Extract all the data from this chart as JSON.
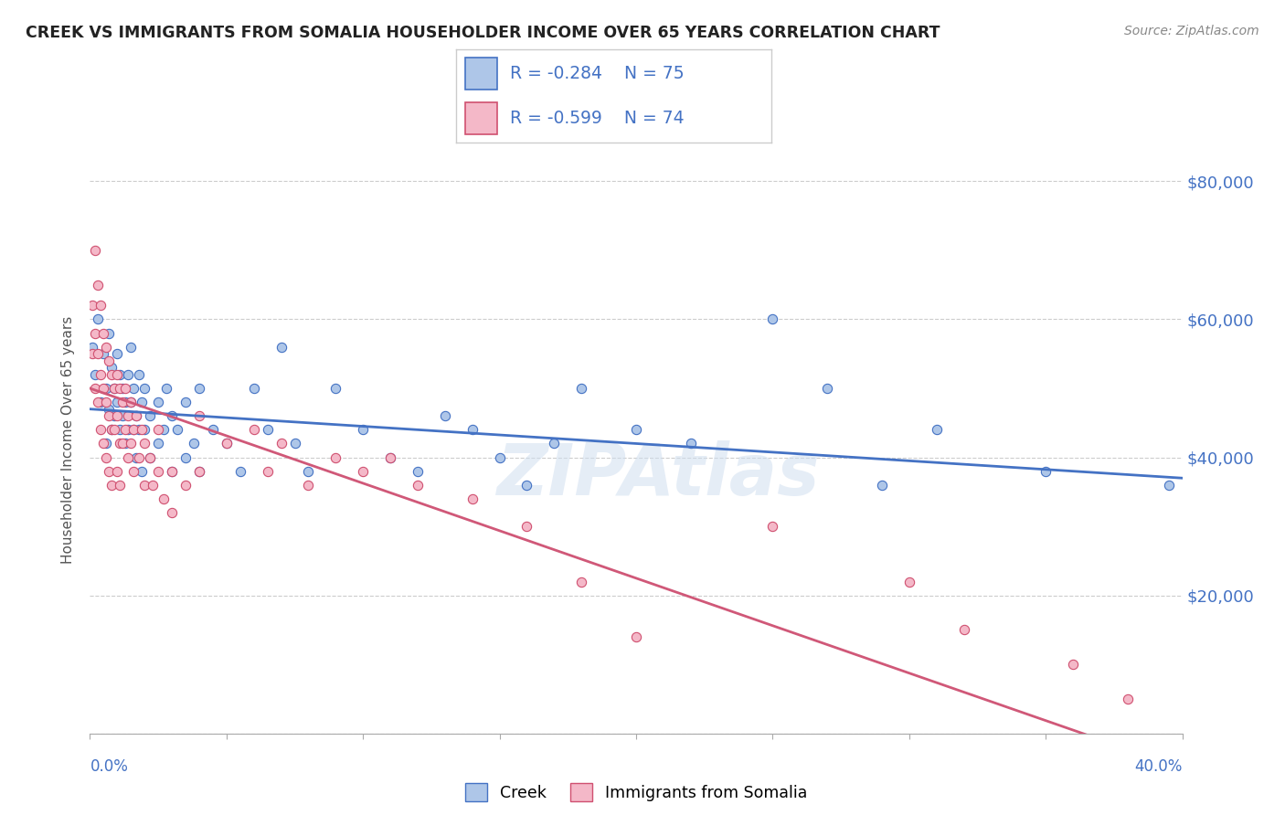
{
  "title": "CREEK VS IMMIGRANTS FROM SOMALIA HOUSEHOLDER INCOME OVER 65 YEARS CORRELATION CHART",
  "source": "Source: ZipAtlas.com",
  "ylabel": "Householder Income Over 65 years",
  "xmin": 0.0,
  "xmax": 0.4,
  "ymin": 0,
  "ymax": 85000,
  "yticks": [
    0,
    20000,
    40000,
    60000,
    80000
  ],
  "ytick_labels": [
    "",
    "$20,000",
    "$40,000",
    "$60,000",
    "$80,000"
  ],
  "creek_color": "#aec6e8",
  "creek_edge_color": "#4472c4",
  "somalia_color": "#f4b8c8",
  "somalia_edge_color": "#d05070",
  "creek_line_color": "#4472c4",
  "somalia_line_color": "#d05878",
  "creek_R": -0.284,
  "creek_N": 75,
  "somalia_R": -0.599,
  "somalia_N": 74,
  "text_color": "#4472c4",
  "grid_color": "#cccccc",
  "background_color": "#ffffff",
  "creek_scatter": [
    [
      0.001,
      56000
    ],
    [
      0.002,
      52000
    ],
    [
      0.003,
      60000
    ],
    [
      0.004,
      48000
    ],
    [
      0.005,
      55000
    ],
    [
      0.006,
      50000
    ],
    [
      0.006,
      42000
    ],
    [
      0.007,
      58000
    ],
    [
      0.007,
      47000
    ],
    [
      0.008,
      53000
    ],
    [
      0.008,
      44000
    ],
    [
      0.009,
      50000
    ],
    [
      0.009,
      46000
    ],
    [
      0.01,
      55000
    ],
    [
      0.01,
      48000
    ],
    [
      0.011,
      52000
    ],
    [
      0.011,
      44000
    ],
    [
      0.012,
      50000
    ],
    [
      0.012,
      46000
    ],
    [
      0.013,
      48000
    ],
    [
      0.013,
      42000
    ],
    [
      0.014,
      52000
    ],
    [
      0.014,
      44000
    ],
    [
      0.015,
      56000
    ],
    [
      0.015,
      48000
    ],
    [
      0.016,
      50000
    ],
    [
      0.016,
      44000
    ],
    [
      0.017,
      46000
    ],
    [
      0.017,
      40000
    ],
    [
      0.018,
      52000
    ],
    [
      0.018,
      44000
    ],
    [
      0.019,
      48000
    ],
    [
      0.019,
      38000
    ],
    [
      0.02,
      50000
    ],
    [
      0.02,
      44000
    ],
    [
      0.022,
      46000
    ],
    [
      0.022,
      40000
    ],
    [
      0.025,
      48000
    ],
    [
      0.025,
      42000
    ],
    [
      0.027,
      44000
    ],
    [
      0.028,
      50000
    ],
    [
      0.03,
      46000
    ],
    [
      0.03,
      38000
    ],
    [
      0.032,
      44000
    ],
    [
      0.035,
      48000
    ],
    [
      0.035,
      40000
    ],
    [
      0.038,
      42000
    ],
    [
      0.04,
      50000
    ],
    [
      0.04,
      38000
    ],
    [
      0.045,
      44000
    ],
    [
      0.05,
      42000
    ],
    [
      0.055,
      38000
    ],
    [
      0.06,
      50000
    ],
    [
      0.065,
      44000
    ],
    [
      0.07,
      56000
    ],
    [
      0.075,
      42000
    ],
    [
      0.08,
      38000
    ],
    [
      0.09,
      50000
    ],
    [
      0.1,
      44000
    ],
    [
      0.11,
      40000
    ],
    [
      0.12,
      38000
    ],
    [
      0.13,
      46000
    ],
    [
      0.14,
      44000
    ],
    [
      0.15,
      40000
    ],
    [
      0.16,
      36000
    ],
    [
      0.17,
      42000
    ],
    [
      0.18,
      50000
    ],
    [
      0.2,
      44000
    ],
    [
      0.22,
      42000
    ],
    [
      0.25,
      60000
    ],
    [
      0.27,
      50000
    ],
    [
      0.29,
      36000
    ],
    [
      0.31,
      44000
    ],
    [
      0.35,
      38000
    ],
    [
      0.395,
      36000
    ]
  ],
  "somalia_scatter": [
    [
      0.001,
      55000
    ],
    [
      0.001,
      62000
    ],
    [
      0.002,
      70000
    ],
    [
      0.002,
      58000
    ],
    [
      0.002,
      50000
    ],
    [
      0.003,
      65000
    ],
    [
      0.003,
      55000
    ],
    [
      0.003,
      48000
    ],
    [
      0.004,
      62000
    ],
    [
      0.004,
      52000
    ],
    [
      0.004,
      44000
    ],
    [
      0.005,
      58000
    ],
    [
      0.005,
      50000
    ],
    [
      0.005,
      42000
    ],
    [
      0.006,
      56000
    ],
    [
      0.006,
      48000
    ],
    [
      0.006,
      40000
    ],
    [
      0.007,
      54000
    ],
    [
      0.007,
      46000
    ],
    [
      0.007,
      38000
    ],
    [
      0.008,
      52000
    ],
    [
      0.008,
      44000
    ],
    [
      0.008,
      36000
    ],
    [
      0.009,
      50000
    ],
    [
      0.009,
      44000
    ],
    [
      0.01,
      52000
    ],
    [
      0.01,
      46000
    ],
    [
      0.01,
      38000
    ],
    [
      0.011,
      50000
    ],
    [
      0.011,
      42000
    ],
    [
      0.011,
      36000
    ],
    [
      0.012,
      48000
    ],
    [
      0.012,
      42000
    ],
    [
      0.013,
      50000
    ],
    [
      0.013,
      44000
    ],
    [
      0.014,
      46000
    ],
    [
      0.014,
      40000
    ],
    [
      0.015,
      48000
    ],
    [
      0.015,
      42000
    ],
    [
      0.016,
      44000
    ],
    [
      0.016,
      38000
    ],
    [
      0.017,
      46000
    ],
    [
      0.018,
      40000
    ],
    [
      0.019,
      44000
    ],
    [
      0.02,
      42000
    ],
    [
      0.02,
      36000
    ],
    [
      0.022,
      40000
    ],
    [
      0.023,
      36000
    ],
    [
      0.025,
      44000
    ],
    [
      0.025,
      38000
    ],
    [
      0.027,
      34000
    ],
    [
      0.03,
      38000
    ],
    [
      0.03,
      32000
    ],
    [
      0.035,
      36000
    ],
    [
      0.04,
      46000
    ],
    [
      0.04,
      38000
    ],
    [
      0.05,
      42000
    ],
    [
      0.06,
      44000
    ],
    [
      0.065,
      38000
    ],
    [
      0.07,
      42000
    ],
    [
      0.08,
      36000
    ],
    [
      0.09,
      40000
    ],
    [
      0.1,
      38000
    ],
    [
      0.11,
      40000
    ],
    [
      0.12,
      36000
    ],
    [
      0.14,
      34000
    ],
    [
      0.16,
      30000
    ],
    [
      0.18,
      22000
    ],
    [
      0.2,
      14000
    ],
    [
      0.25,
      30000
    ],
    [
      0.3,
      22000
    ],
    [
      0.32,
      15000
    ],
    [
      0.36,
      10000
    ],
    [
      0.38,
      5000
    ]
  ]
}
